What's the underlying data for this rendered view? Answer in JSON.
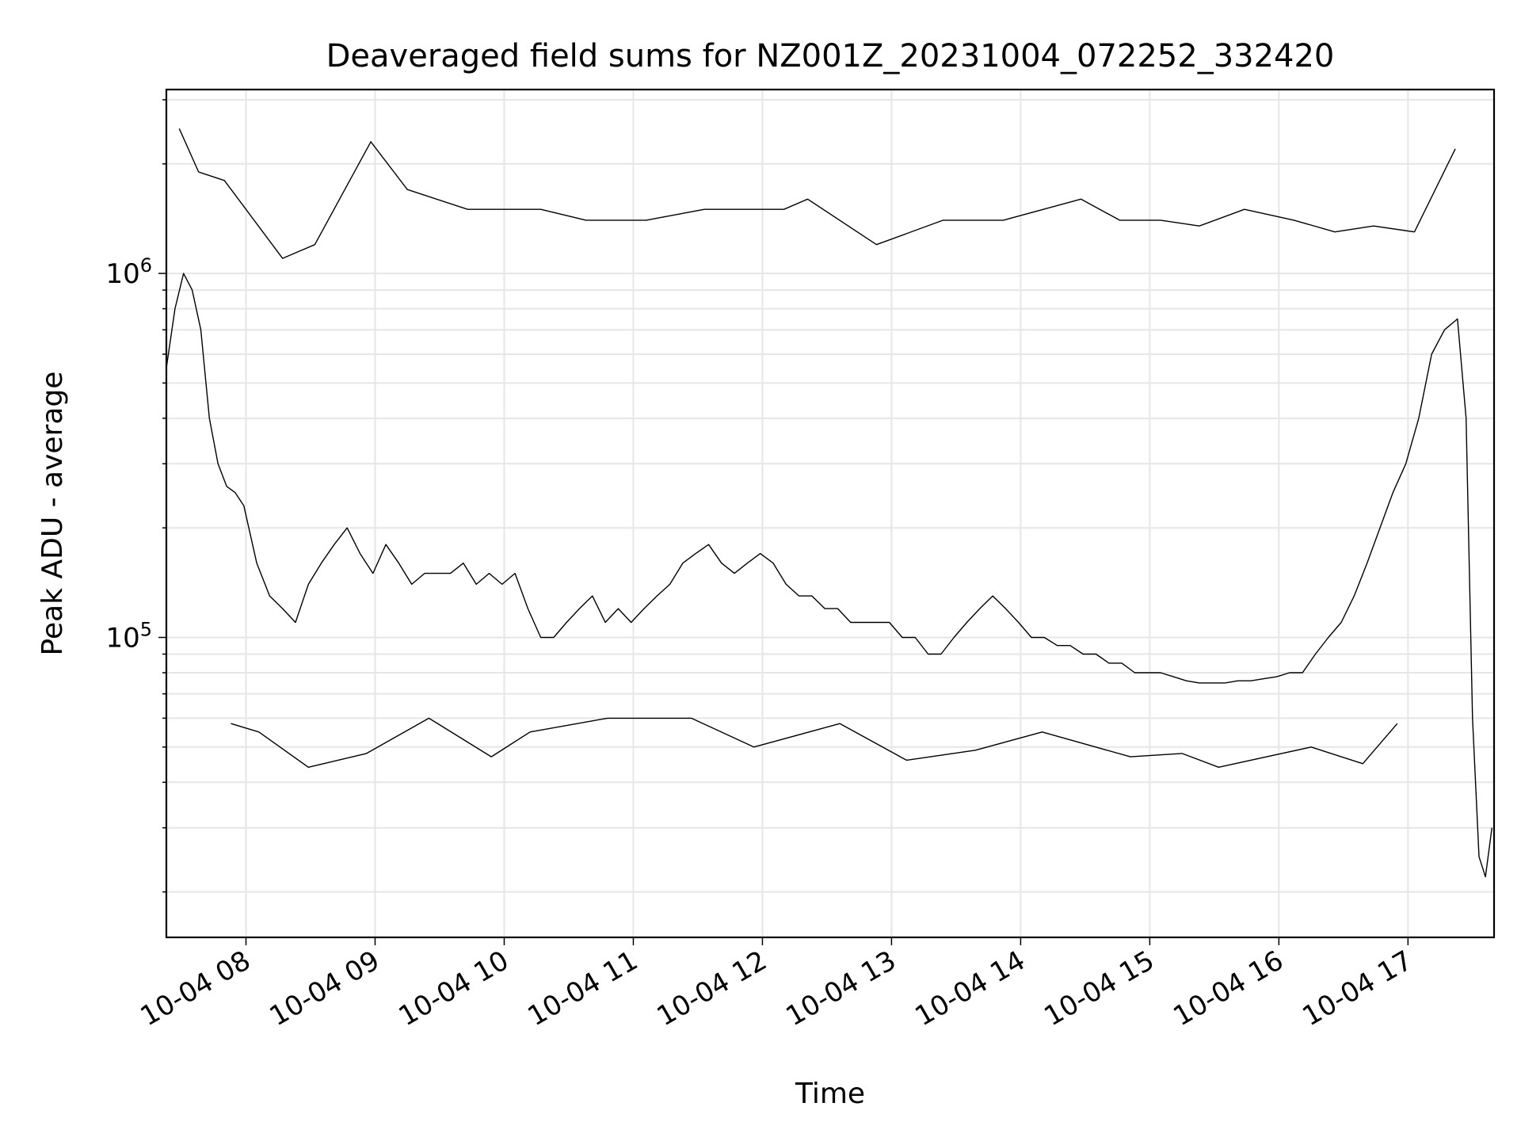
{
  "chart_data": {
    "type": "line",
    "title": "Deaveraged field sums for NZ001Z_20231004_072252_332420",
    "xlabel": "Time",
    "ylabel": "Peak ADU - average",
    "x_range": [
      "2023-10-04 07:23",
      "2023-10-04 17:40"
    ],
    "y_scale": "log",
    "ylim": [
      15000,
      3200000
    ],
    "grid": true,
    "line_color": "#000000",
    "x_ticks": [
      {
        "label": "10-04 08",
        "value": "2023-10-04 08:00"
      },
      {
        "label": "10-04 09",
        "value": "2023-10-04 09:00"
      },
      {
        "label": "10-04 10",
        "value": "2023-10-04 10:00"
      },
      {
        "label": "10-04 11",
        "value": "2023-10-04 11:00"
      },
      {
        "label": "10-04 12",
        "value": "2023-10-04 12:00"
      },
      {
        "label": "10-04 13",
        "value": "2023-10-04 13:00"
      },
      {
        "label": "10-04 14",
        "value": "2023-10-04 14:00"
      },
      {
        "label": "10-04 15",
        "value": "2023-10-04 15:00"
      },
      {
        "label": "10-04 16",
        "value": "2023-10-04 16:00"
      },
      {
        "label": "10-04 17",
        "value": "2023-10-04 17:00"
      }
    ],
    "y_ticks": [
      {
        "base": "10",
        "exp": "5",
        "value": 100000
      },
      {
        "base": "10",
        "exp": "6",
        "value": 1000000
      }
    ],
    "series": [
      {
        "x": [
          "2023-10-04 07:23",
          "2023-10-04 07:27",
          "2023-10-04 07:31",
          "2023-10-04 07:35",
          "2023-10-04 07:39",
          "2023-10-04 07:43",
          "2023-10-04 07:47",
          "2023-10-04 07:51",
          "2023-10-04 07:55",
          "2023-10-04 07:59",
          "2023-10-04 08:05",
          "2023-10-04 08:11",
          "2023-10-04 08:17",
          "2023-10-04 08:23",
          "2023-10-04 08:29",
          "2023-10-04 08:35",
          "2023-10-04 08:41",
          "2023-10-04 08:47",
          "2023-10-04 08:53",
          "2023-10-04 08:59",
          "2023-10-04 09:05",
          "2023-10-04 09:11",
          "2023-10-04 09:17",
          "2023-10-04 09:23",
          "2023-10-04 09:29",
          "2023-10-04 09:35",
          "2023-10-04 09:41",
          "2023-10-04 09:47",
          "2023-10-04 09:53",
          "2023-10-04 09:59",
          "2023-10-04 10:05",
          "2023-10-04 10:11",
          "2023-10-04 10:17",
          "2023-10-04 10:23",
          "2023-10-04 10:29",
          "2023-10-04 10:35",
          "2023-10-04 10:41",
          "2023-10-04 10:47",
          "2023-10-04 10:53",
          "2023-10-04 10:59",
          "2023-10-04 11:05",
          "2023-10-04 11:11",
          "2023-10-04 11:17",
          "2023-10-04 11:23",
          "2023-10-04 11:29",
          "2023-10-04 11:35",
          "2023-10-04 11:41",
          "2023-10-04 11:47",
          "2023-10-04 11:53",
          "2023-10-04 11:59",
          "2023-10-04 12:05",
          "2023-10-04 12:11",
          "2023-10-04 12:17",
          "2023-10-04 12:23",
          "2023-10-04 12:29",
          "2023-10-04 12:35",
          "2023-10-04 12:41",
          "2023-10-04 12:47",
          "2023-10-04 12:53",
          "2023-10-04 12:59",
          "2023-10-04 13:05",
          "2023-10-04 13:11",
          "2023-10-04 13:17",
          "2023-10-04 13:23",
          "2023-10-04 13:29",
          "2023-10-04 13:35",
          "2023-10-04 13:41",
          "2023-10-04 13:47",
          "2023-10-04 13:53",
          "2023-10-04 13:59",
          "2023-10-04 14:05",
          "2023-10-04 14:11",
          "2023-10-04 14:17",
          "2023-10-04 14:23",
          "2023-10-04 14:29",
          "2023-10-04 14:35",
          "2023-10-04 14:41",
          "2023-10-04 14:47",
          "2023-10-04 14:53",
          "2023-10-04 14:59",
          "2023-10-04 15:05",
          "2023-10-04 15:11",
          "2023-10-04 15:17",
          "2023-10-04 15:23",
          "2023-10-04 15:29",
          "2023-10-04 15:35",
          "2023-10-04 15:41",
          "2023-10-04 15:47",
          "2023-10-04 15:53",
          "2023-10-04 15:59",
          "2023-10-04 16:05",
          "2023-10-04 16:11",
          "2023-10-04 16:17",
          "2023-10-04 16:23",
          "2023-10-04 16:29",
          "2023-10-04 16:35",
          "2023-10-04 16:41",
          "2023-10-04 16:47",
          "2023-10-04 16:53",
          "2023-10-04 16:59",
          "2023-10-04 17:05",
          "2023-10-04 17:11",
          "2023-10-04 17:17",
          "2023-10-04 17:23",
          "2023-10-04 17:27",
          "2023-10-04 17:30",
          "2023-10-04 17:33",
          "2023-10-04 17:36",
          "2023-10-04 17:39"
        ],
        "y": [
          550000,
          800000,
          1000000,
          900000,
          700000,
          400000,
          300000,
          260000,
          250000,
          230000,
          160000,
          130000,
          120000,
          110000,
          140000,
          160000,
          180000,
          200000,
          170000,
          150000,
          180000,
          160000,
          140000,
          150000,
          150000,
          150000,
          160000,
          140000,
          150000,
          140000,
          150000,
          120000,
          100000,
          100000,
          110000,
          120000,
          130000,
          110000,
          120000,
          110000,
          120000,
          130000,
          140000,
          160000,
          170000,
          180000,
          160000,
          150000,
          160000,
          170000,
          160000,
          140000,
          130000,
          130000,
          120000,
          120000,
          110000,
          110000,
          110000,
          110000,
          100000,
          100000,
          90000,
          90000,
          100000,
          110000,
          120000,
          130000,
          120000,
          110000,
          100000,
          100000,
          95000,
          95000,
          90000,
          90000,
          85000,
          85000,
          80000,
          80000,
          80000,
          78000,
          76000,
          75000,
          75000,
          75000,
          76000,
          76000,
          77000,
          78000,
          80000,
          80000,
          90000,
          100000,
          110000,
          130000,
          160000,
          200000,
          250000,
          300000,
          400000,
          600000,
          700000,
          750000,
          400000,
          60000,
          25000,
          22000,
          30000
        ]
      },
      {
        "x": [
          "2023-10-04 07:29",
          "2023-10-04 07:38",
          "2023-10-04 07:50",
          "2023-10-04 08:17",
          "2023-10-04 08:32",
          "2023-10-04 08:58",
          "2023-10-04 09:15",
          "2023-10-04 09:43",
          "2023-10-04 10:17",
          "2023-10-04 10:38",
          "2023-10-04 11:06",
          "2023-10-04 11:33",
          "2023-10-04 11:42",
          "2023-10-04 12:10",
          "2023-10-04 12:21",
          "2023-10-04 12:53",
          "2023-10-04 13:24",
          "2023-10-04 13:52",
          "2023-10-04 14:28",
          "2023-10-04 14:46",
          "2023-10-04 15:05",
          "2023-10-04 15:23",
          "2023-10-04 15:44",
          "2023-10-04 16:07",
          "2023-10-04 16:26",
          "2023-10-04 16:44",
          "2023-10-04 17:03",
          "2023-10-04 17:22"
        ],
        "y": [
          2500000,
          1900000,
          1800000,
          1100000,
          1200000,
          2300000,
          1700000,
          1500000,
          1500000,
          1400000,
          1400000,
          1500000,
          1500000,
          1500000,
          1600000,
          1200000,
          1400000,
          1400000,
          1600000,
          1400000,
          1400000,
          1350000,
          1500000,
          1400000,
          1300000,
          1350000,
          1300000,
          2200000
        ]
      },
      {
        "x": [
          "2023-10-04 07:53",
          "2023-10-04 08:06",
          "2023-10-04 08:29",
          "2023-10-04 08:56",
          "2023-10-04 09:25",
          "2023-10-04 09:54",
          "2023-10-04 10:12",
          "2023-10-04 10:48",
          "2023-10-04 11:27",
          "2023-10-04 11:56",
          "2023-10-04 12:36",
          "2023-10-04 13:07",
          "2023-10-04 13:39",
          "2023-10-04 14:10",
          "2023-10-04 14:51",
          "2023-10-04 15:15",
          "2023-10-04 15:32",
          "2023-10-04 16:15",
          "2023-10-04 16:39",
          "2023-10-04 16:55"
        ],
        "y": [
          58000,
          55000,
          44000,
          48000,
          60000,
          47000,
          55000,
          60000,
          60000,
          50000,
          58000,
          46000,
          49000,
          55000,
          47000,
          48000,
          44000,
          50000,
          45000,
          58000
        ]
      }
    ]
  }
}
